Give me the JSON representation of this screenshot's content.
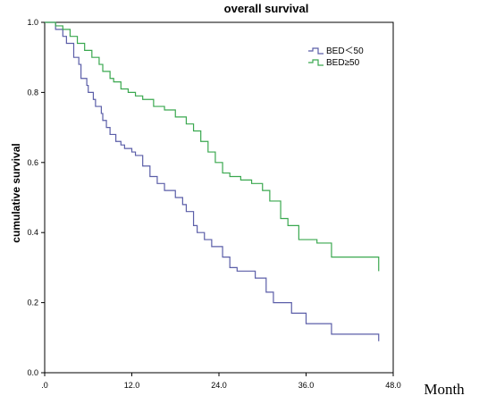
{
  "chart_data": {
    "type": "line",
    "title": "overall survival",
    "xlabel": "Month",
    "ylabel": "cumulative survival",
    "xlim": [
      0,
      48
    ],
    "ylim": [
      0,
      1.0
    ],
    "x_ticks": [
      ".0",
      "12.0",
      "24.0",
      "36.0",
      "48.0"
    ],
    "y_ticks": [
      "0.0",
      "0.2",
      "0.4",
      "0.6",
      "0.8",
      "1.0"
    ],
    "legend_position": "top-right",
    "grid": false,
    "series": [
      {
        "name": "BED＜50",
        "color": "#5b5ea8",
        "x": [
          0,
          1.5,
          2.5,
          3.0,
          4.0,
          4.7,
          5.0,
          5.8,
          6.0,
          6.7,
          7.0,
          7.8,
          8.0,
          8.5,
          9.0,
          9.8,
          10.5,
          11.0,
          12.0,
          12.5,
          13.5,
          14.5,
          15.5,
          16.5,
          18.0,
          19.0,
          19.5,
          20.5,
          21.0,
          22.0,
          23.0,
          24.5,
          25.5,
          26.5,
          29.0,
          30.5,
          31.5,
          34.0,
          36.0,
          39.5,
          42.0,
          46.0
        ],
        "y": [
          1.0,
          0.98,
          0.96,
          0.94,
          0.9,
          0.88,
          0.84,
          0.82,
          0.8,
          0.78,
          0.76,
          0.74,
          0.72,
          0.7,
          0.68,
          0.66,
          0.65,
          0.64,
          0.63,
          0.62,
          0.59,
          0.56,
          0.54,
          0.52,
          0.5,
          0.48,
          0.46,
          0.42,
          0.4,
          0.38,
          0.36,
          0.33,
          0.3,
          0.29,
          0.27,
          0.23,
          0.2,
          0.17,
          0.14,
          0.11,
          0.11,
          0.09
        ]
      },
      {
        "name": "BED≥50",
        "color": "#3aa84f",
        "x": [
          0,
          1.5,
          2.5,
          3.5,
          4.5,
          5.5,
          6.5,
          7.5,
          8.0,
          9.0,
          9.5,
          10.5,
          11.5,
          12.5,
          13.5,
          15.0,
          16.5,
          18.0,
          19.5,
          20.5,
          21.5,
          22.5,
          23.5,
          24.5,
          25.5,
          27.0,
          28.5,
          30.0,
          31.0,
          32.5,
          33.5,
          35.0,
          37.5,
          39.5,
          42.0,
          46.0
        ],
        "y": [
          1.0,
          0.99,
          0.98,
          0.96,
          0.94,
          0.92,
          0.9,
          0.88,
          0.86,
          0.84,
          0.83,
          0.81,
          0.8,
          0.79,
          0.78,
          0.76,
          0.75,
          0.73,
          0.71,
          0.69,
          0.66,
          0.63,
          0.6,
          0.57,
          0.56,
          0.55,
          0.54,
          0.52,
          0.49,
          0.44,
          0.42,
          0.38,
          0.37,
          0.33,
          0.33,
          0.29
        ]
      }
    ]
  }
}
